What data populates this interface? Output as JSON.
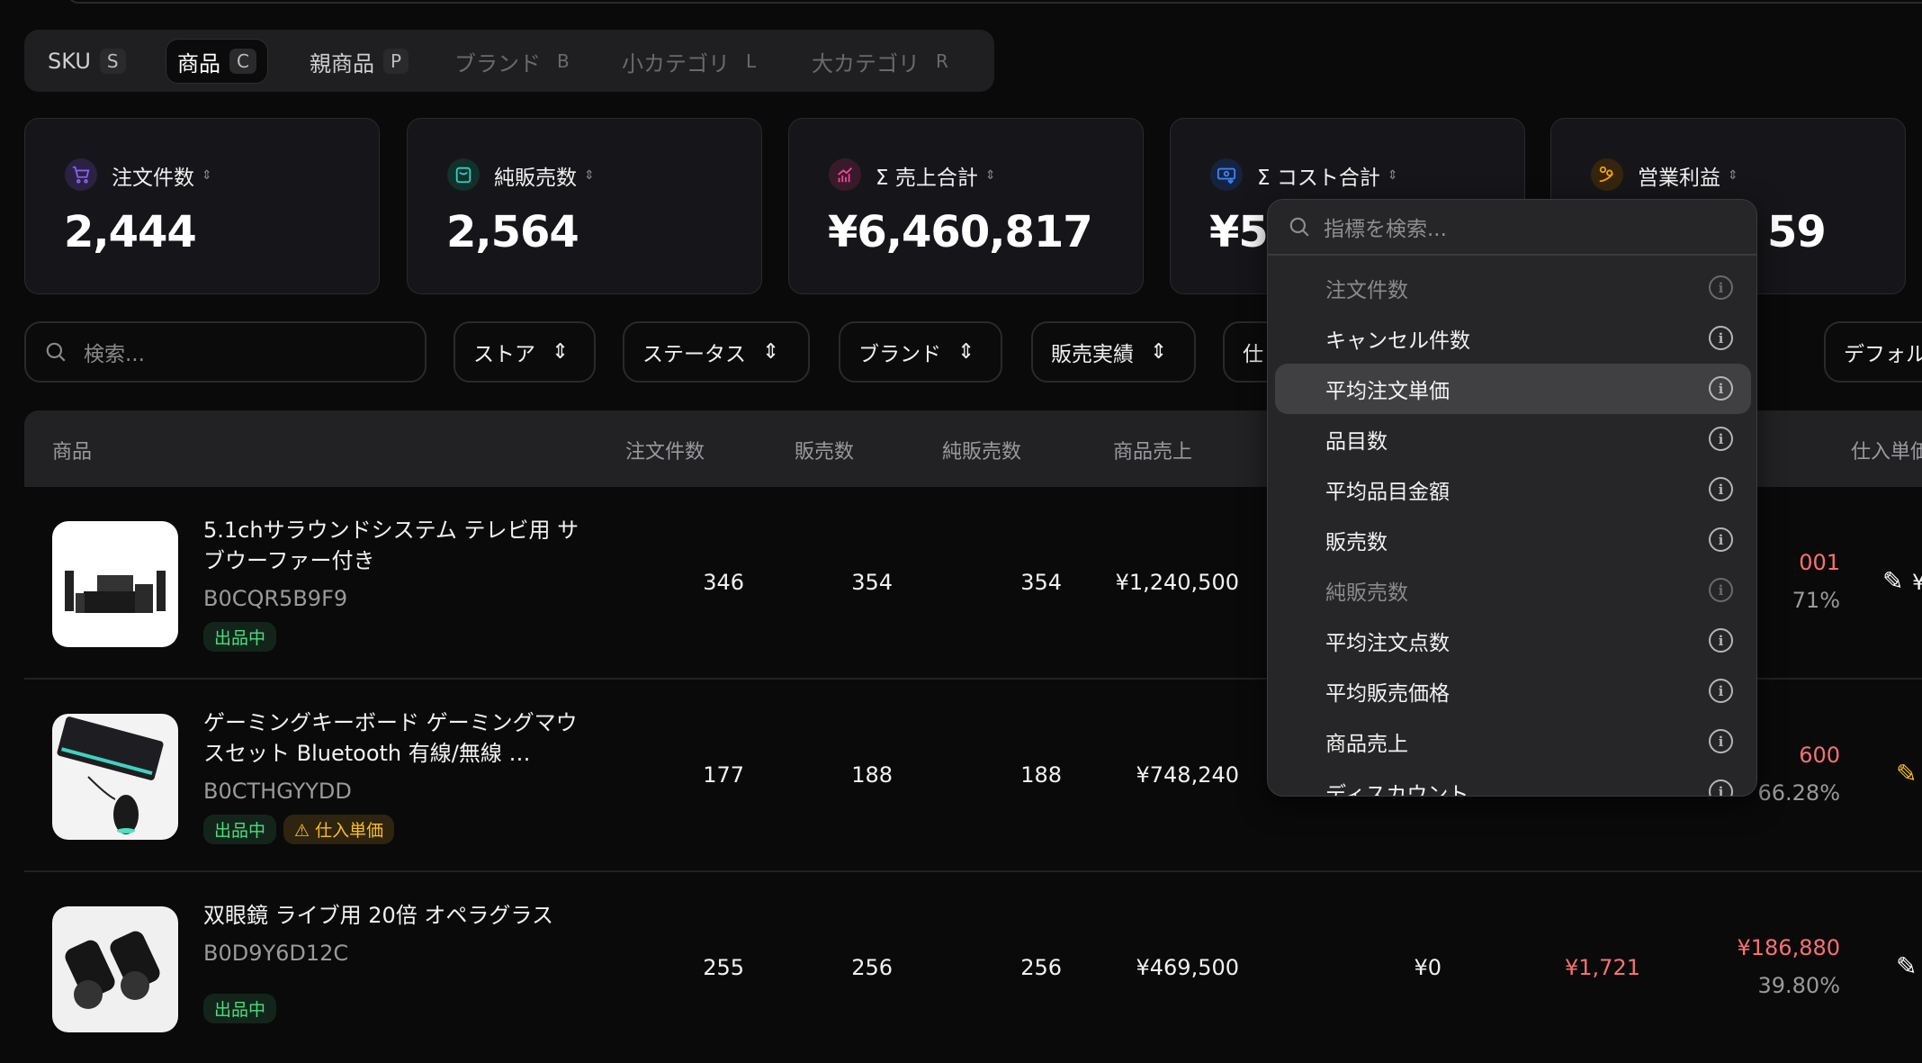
{
  "tabs": [
    {
      "label": "SKU",
      "key": "S"
    },
    {
      "label": "商品",
      "key": "C",
      "active": true
    },
    {
      "label": "親商品",
      "key": "P"
    },
    {
      "label": "ブランド",
      "key": "B",
      "disabled": true
    },
    {
      "label": "小カテゴリ",
      "key": "L",
      "disabled": true
    },
    {
      "label": "大カテゴリ",
      "key": "R",
      "disabled": true
    }
  ],
  "kpis": [
    {
      "label": "注文件数",
      "value": "2,444",
      "icon": "cart-icon",
      "color": "#8b5cf6"
    },
    {
      "label": "純販売数",
      "value": "2,564",
      "icon": "bag-icon",
      "color": "#2dd4bf"
    },
    {
      "label": "Σ 売上合計",
      "value": "¥6,460,817",
      "icon": "chart-icon",
      "color": "#ec4899"
    },
    {
      "label": "Σ コスト合計",
      "value": "¥5",
      "icon": "money-icon",
      "color": "#3b82f6"
    },
    {
      "label": "営業利益",
      "value": "59",
      "icon": "profit-hand-icon",
      "color": "#f59e0b"
    }
  ],
  "filters": {
    "search_placeholder": "検索...",
    "store": "ストア",
    "status": "ステータス",
    "brand": "ブランド",
    "sales": "販売実績",
    "hidden": "仕",
    "sort": "デフォル"
  },
  "table": {
    "headers": {
      "product": "商品",
      "orders": "注文件数",
      "sold": "販売数",
      "net_sold": "純販売数",
      "product_sales": "商品売上",
      "unit_cost": "仕入単価"
    },
    "rows": [
      {
        "title": "5.1chサラウンドシステム テレビ用 サブウーファー付き",
        "sku": "B0CQR5B9F9",
        "status": "出品中",
        "orders": "346",
        "sold": "354",
        "net_sold": "354",
        "product_sales": "¥1,240,500",
        "profit": "001",
        "margin": "71%",
        "cost_partial": "¥"
      },
      {
        "title": "ゲーミングキーボード ゲーミングマウスセット Bluetooth 有線/無線 …",
        "sku": "B0CTHGYYDD",
        "status": "出品中",
        "warning": "仕入単価",
        "orders": "177",
        "sold": "188",
        "net_sold": "188",
        "product_sales": "¥748,240",
        "profit": "600",
        "margin": "66.28%"
      },
      {
        "title": "双眼鏡 ライブ用 20倍 オペラグラス",
        "sku": "B0D9Y6D12C",
        "status": "出品中",
        "orders": "255",
        "sold": "256",
        "net_sold": "256",
        "product_sales": "¥469,500",
        "col6": "¥0",
        "col7": "¥1,721",
        "profit": "¥186,880",
        "margin": "39.80%"
      }
    ]
  },
  "dropdown": {
    "search_placeholder": "指標を検索...",
    "items": [
      {
        "label": "注文件数",
        "disabled": true
      },
      {
        "label": "キャンセル件数"
      },
      {
        "label": "平均注文単価",
        "highlighted": true
      },
      {
        "label": "品目数"
      },
      {
        "label": "平均品目金額"
      },
      {
        "label": "販売数"
      },
      {
        "label": "純販売数",
        "disabled": true
      },
      {
        "label": "平均注文点数"
      },
      {
        "label": "平均販売価格"
      },
      {
        "label": "商品売上"
      },
      {
        "label": "ディスカウント"
      }
    ]
  }
}
